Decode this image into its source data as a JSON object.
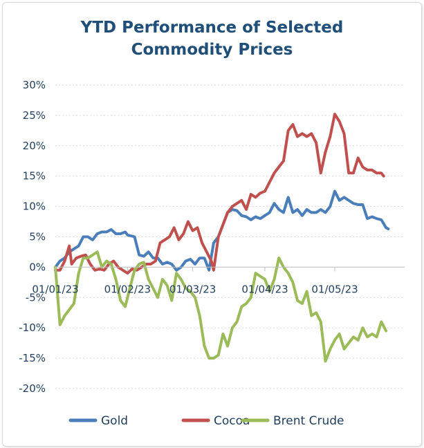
{
  "chart_data": {
    "type": "line",
    "title_lines": [
      "YTD Performance of Selected",
      "Commodity Prices"
    ],
    "xlabel": "",
    "ylabel": "",
    "ylim": [
      -20,
      30
    ],
    "y_ticks": [
      30,
      25,
      20,
      15,
      10,
      5,
      0,
      -5,
      -10,
      -15,
      -20
    ],
    "y_tick_labels": [
      "30%",
      "25%",
      "20%",
      "15%",
      "10%",
      "5%",
      "0%",
      "-5%",
      "-10%",
      "-15%",
      "-20%"
    ],
    "x_domain_days": [
      0,
      150
    ],
    "x_tick_days": [
      0,
      31,
      59,
      90,
      120
    ],
    "x_tick_labels": [
      "01/01/23",
      "01/02/23",
      "01/03/23",
      "01/04/23",
      "01/05/23"
    ],
    "legend_position": "bottom",
    "series": [
      {
        "name": "Gold",
        "color": "#4a7ebb",
        "points": [
          [
            0,
            0
          ],
          [
            2,
            1
          ],
          [
            4,
            1.5
          ],
          [
            6,
            2.5
          ],
          [
            8,
            3
          ],
          [
            10,
            3.5
          ],
          [
            12,
            5
          ],
          [
            14,
            5
          ],
          [
            16,
            4.5
          ],
          [
            18,
            5.5
          ],
          [
            20,
            5.8
          ],
          [
            22,
            5.8
          ],
          [
            24,
            6.2
          ],
          [
            26,
            5.5
          ],
          [
            28,
            5.5
          ],
          [
            30,
            5.8
          ],
          [
            31,
            5.3
          ],
          [
            34,
            5
          ],
          [
            36,
            2
          ],
          [
            38,
            1.8
          ],
          [
            40,
            2.5
          ],
          [
            42,
            1.5
          ],
          [
            44,
            1.5
          ],
          [
            46,
            0.5
          ],
          [
            48,
            0.8
          ],
          [
            50,
            0.5
          ],
          [
            52,
            -0.5
          ],
          [
            54,
            0
          ],
          [
            56,
            1
          ],
          [
            58,
            1.3
          ],
          [
            60,
            0.5
          ],
          [
            62,
            1.5
          ],
          [
            64,
            1.5
          ],
          [
            66,
            -0.5
          ],
          [
            68,
            4
          ],
          [
            70,
            5
          ],
          [
            72,
            7
          ],
          [
            74,
            9
          ],
          [
            76,
            9.5
          ],
          [
            78,
            9.3
          ],
          [
            80,
            8.5
          ],
          [
            82,
            8.3
          ],
          [
            84,
            7.8
          ],
          [
            86,
            8.3
          ],
          [
            88,
            8
          ],
          [
            90,
            8.5
          ],
          [
            92,
            9
          ],
          [
            94,
            10.5
          ],
          [
            96,
            9.5
          ],
          [
            98,
            9
          ],
          [
            100,
            11.5
          ],
          [
            102,
            9
          ],
          [
            104,
            9.5
          ],
          [
            106,
            8.5
          ],
          [
            108,
            9.5
          ],
          [
            110,
            9
          ],
          [
            112,
            9
          ],
          [
            114,
            9.5
          ],
          [
            116,
            9
          ],
          [
            118,
            10
          ],
          [
            120,
            12.5
          ],
          [
            122,
            11
          ],
          [
            124,
            11.5
          ],
          [
            126,
            11
          ],
          [
            128,
            10.5
          ],
          [
            130,
            10.3
          ],
          [
            132,
            10.3
          ],
          [
            134,
            8
          ],
          [
            136,
            8.3
          ],
          [
            138,
            8
          ],
          [
            140,
            7.8
          ],
          [
            142,
            6.5
          ],
          [
            143,
            6.3
          ]
        ]
      },
      {
        "name": "Cocoa",
        "color": "#c0504d",
        "points": [
          [
            0,
            -0.5
          ],
          [
            2,
            -0.5
          ],
          [
            4,
            1
          ],
          [
            6,
            3.5
          ],
          [
            7,
            0.5
          ],
          [
            9,
            1.5
          ],
          [
            11,
            1.8
          ],
          [
            13,
            2
          ],
          [
            15,
            0.5
          ],
          [
            17,
            -0.5
          ],
          [
            19,
            -0.3
          ],
          [
            21,
            -0.5
          ],
          [
            23,
            0.5
          ],
          [
            25,
            1
          ],
          [
            27,
            0
          ],
          [
            29,
            -0.5
          ],
          [
            31,
            -1
          ],
          [
            33,
            -0.3
          ],
          [
            35,
            -0.5
          ],
          [
            37,
            0
          ],
          [
            39,
            0.5
          ],
          [
            41,
            0.5
          ],
          [
            43,
            1
          ],
          [
            45,
            4
          ],
          [
            47,
            4.5
          ],
          [
            49,
            5
          ],
          [
            51,
            6.5
          ],
          [
            53,
            4.5
          ],
          [
            55,
            5.5
          ],
          [
            57,
            7.5
          ],
          [
            59,
            6
          ],
          [
            61,
            6.5
          ],
          [
            63,
            4
          ],
          [
            65,
            2.5
          ],
          [
            67,
            1
          ],
          [
            68,
            -0.5
          ],
          [
            70,
            5
          ],
          [
            72,
            7
          ],
          [
            74,
            9
          ],
          [
            76,
            10
          ],
          [
            78,
            10.5
          ],
          [
            80,
            11
          ],
          [
            82,
            9.5
          ],
          [
            84,
            12
          ],
          [
            86,
            11.5
          ],
          [
            88,
            12.2
          ],
          [
            90,
            12.5
          ],
          [
            92,
            14
          ],
          [
            94,
            15.5
          ],
          [
            96,
            16.5
          ],
          [
            98,
            17.5
          ],
          [
            100,
            22.5
          ],
          [
            102,
            23.5
          ],
          [
            104,
            21.5
          ],
          [
            106,
            22
          ],
          [
            108,
            21.5
          ],
          [
            110,
            22
          ],
          [
            112,
            20.5
          ],
          [
            114,
            15.5
          ],
          [
            116,
            19
          ],
          [
            118,
            21.5
          ],
          [
            120,
            25.2
          ],
          [
            122,
            24
          ],
          [
            124,
            22
          ],
          [
            126,
            15.5
          ],
          [
            128,
            15.5
          ],
          [
            130,
            18
          ],
          [
            132,
            16.5
          ],
          [
            134,
            16
          ],
          [
            136,
            16
          ],
          [
            138,
            15.5
          ],
          [
            140,
            15.5
          ],
          [
            141,
            15
          ]
        ]
      },
      {
        "name": "Brent Crude",
        "color": "#9bbb59",
        "points": [
          [
            0,
            0
          ],
          [
            2,
            -9.5
          ],
          [
            4,
            -8
          ],
          [
            6,
            -7
          ],
          [
            8,
            -6
          ],
          [
            10,
            -1
          ],
          [
            12,
            1.5
          ],
          [
            14,
            1.5
          ],
          [
            16,
            2
          ],
          [
            18,
            2.5
          ],
          [
            20,
            0
          ],
          [
            22,
            1
          ],
          [
            24,
            0.5
          ],
          [
            26,
            -2
          ],
          [
            28,
            -5.5
          ],
          [
            30,
            -6.5
          ],
          [
            32,
            -3.5
          ],
          [
            34,
            -0.5
          ],
          [
            36,
            0.5
          ],
          [
            38,
            0.8
          ],
          [
            40,
            -2
          ],
          [
            42,
            -3.5
          ],
          [
            44,
            -5
          ],
          [
            46,
            -2
          ],
          [
            48,
            -3
          ],
          [
            50,
            -5.5
          ],
          [
            52,
            -1
          ],
          [
            54,
            -2
          ],
          [
            56,
            -3.5
          ],
          [
            58,
            -4
          ],
          [
            60,
            -5
          ],
          [
            62,
            -8
          ],
          [
            64,
            -13
          ],
          [
            66,
            -15
          ],
          [
            68,
            -15
          ],
          [
            70,
            -14.5
          ],
          [
            72,
            -11
          ],
          [
            74,
            -13
          ],
          [
            76,
            -10
          ],
          [
            78,
            -9
          ],
          [
            80,
            -6.5
          ],
          [
            82,
            -6
          ],
          [
            84,
            -5
          ],
          [
            86,
            -1
          ],
          [
            88,
            -1.5
          ],
          [
            90,
            -2
          ],
          [
            92,
            -4
          ],
          [
            94,
            -2
          ],
          [
            96,
            1.5
          ],
          [
            98,
            0
          ],
          [
            100,
            -1
          ],
          [
            102,
            -2.5
          ],
          [
            104,
            -5.5
          ],
          [
            106,
            -6
          ],
          [
            108,
            -4
          ],
          [
            110,
            -8
          ],
          [
            112,
            -7.5
          ],
          [
            114,
            -9
          ],
          [
            116,
            -15.5
          ],
          [
            118,
            -13.5
          ],
          [
            120,
            -12
          ],
          [
            122,
            -11
          ],
          [
            124,
            -13.5
          ],
          [
            126,
            -12.5
          ],
          [
            128,
            -11.5
          ],
          [
            130,
            -12
          ],
          [
            132,
            -10
          ],
          [
            134,
            -11.5
          ],
          [
            136,
            -11
          ],
          [
            138,
            -11.5
          ],
          [
            140,
            -9
          ],
          [
            142,
            -10.5
          ]
        ]
      }
    ]
  }
}
